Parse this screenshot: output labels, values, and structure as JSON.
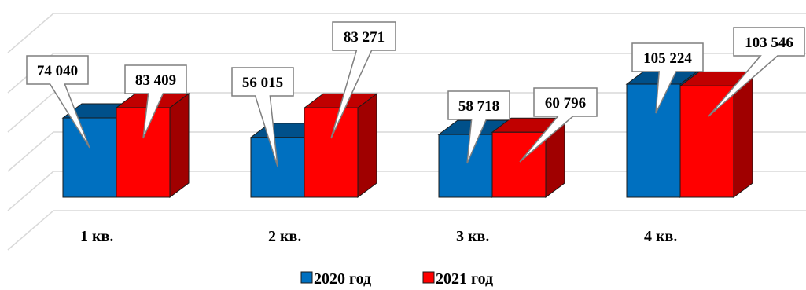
{
  "chart_data": {
    "type": "bar",
    "categories": [
      "1 кв.",
      "2 кв.",
      "3 кв.",
      "4 кв."
    ],
    "series": [
      {
        "name": "2020 год",
        "values": [
          74040,
          56015,
          58718,
          105224
        ],
        "labels": [
          "74 040",
          "56 015",
          "58 718",
          "105 224"
        ],
        "color": "#0070C0",
        "top_color": "#00508A",
        "side_color": "#004A80"
      },
      {
        "name": "2021 год",
        "values": [
          83409,
          83271,
          60796,
          103546
        ],
        "labels": [
          "83 409",
          "83 271",
          "60 796",
          "103 546"
        ],
        "color": "#FF0000",
        "top_color": "#C00000",
        "side_color": "#A00000"
      }
    ],
    "title": "",
    "xlabel": "",
    "ylabel": "",
    "ylim": [
      0,
      110000
    ],
    "grid": true,
    "legend_position": "bottom",
    "style": "3d-column"
  }
}
